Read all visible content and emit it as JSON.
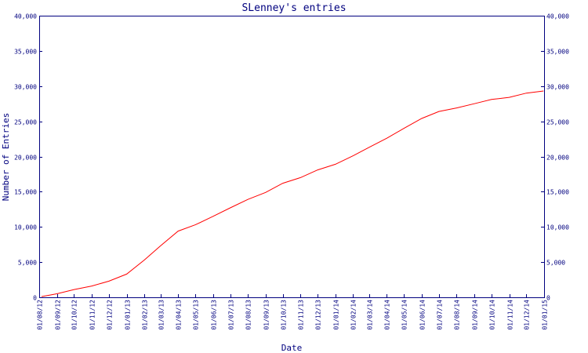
{
  "chart_data": {
    "type": "line",
    "title": "SLenney's entries",
    "xlabel": "Date",
    "ylabel": "Number of Entries",
    "ylim": [
      0,
      40000
    ],
    "yticks": [
      0,
      5000,
      10000,
      15000,
      20000,
      25000,
      30000,
      35000,
      40000
    ],
    "ytick_labels": [
      "0",
      "5,000",
      "10,000",
      "15,000",
      "20,000",
      "25,000",
      "30,000",
      "35,000",
      "40,000"
    ],
    "y_axis_right": true,
    "grid": false,
    "xlim": [
      "2012-08-01",
      "2015-01-01"
    ],
    "xticks": [
      "2012-08-01",
      "2012-09-01",
      "2012-10-01",
      "2012-11-01",
      "2012-12-01",
      "2013-01-01",
      "2013-02-01",
      "2013-03-01",
      "2013-04-01",
      "2013-05-01",
      "2013-06-01",
      "2013-07-01",
      "2013-08-01",
      "2013-09-01",
      "2013-10-01",
      "2013-11-01",
      "2013-12-01",
      "2014-01-01",
      "2014-02-01",
      "2014-03-01",
      "2014-04-01",
      "2014-05-01",
      "2014-06-01",
      "2014-07-01",
      "2014-08-01",
      "2014-09-01",
      "2014-10-01",
      "2014-11-01",
      "2014-12-01",
      "2015-01-01"
    ],
    "xtick_labels": [
      "01/08/12",
      "01/09/12",
      "01/10/12",
      "01/11/12",
      "01/12/12",
      "01/01/13",
      "01/02/13",
      "01/03/13",
      "01/04/13",
      "01/05/13",
      "01/06/13",
      "01/07/13",
      "01/08/13",
      "01/09/13",
      "01/10/13",
      "01/11/13",
      "01/12/13",
      "01/01/14",
      "01/02/14",
      "01/03/14",
      "01/04/14",
      "01/05/14",
      "01/06/14",
      "01/07/14",
      "01/08/14",
      "01/09/14",
      "01/10/14",
      "01/11/14",
      "01/12/14",
      "01/01/15"
    ],
    "series": [
      {
        "color": "#ff0000",
        "x": [
          "2012-08-05",
          "2012-09-01",
          "2012-10-01",
          "2012-11-01",
          "2012-12-01",
          "2013-01-01",
          "2013-02-01",
          "2013-03-01",
          "2013-04-01",
          "2013-05-01",
          "2013-06-01",
          "2013-07-01",
          "2013-08-01",
          "2013-09-01",
          "2013-10-01",
          "2013-11-01",
          "2013-12-01",
          "2014-01-01",
          "2014-02-01",
          "2014-03-01",
          "2014-04-01",
          "2014-05-01",
          "2014-06-01",
          "2014-07-01",
          "2014-08-01",
          "2014-09-01",
          "2014-10-01",
          "2014-11-01",
          "2014-12-01",
          "2014-12-31"
        ],
        "y": [
          100,
          500,
          1100,
          1600,
          2300,
          3300,
          5300,
          7300,
          9400,
          10300,
          11500,
          12700,
          13900,
          14900,
          16200,
          17000,
          18100,
          18900,
          20100,
          21300,
          22600,
          24000,
          25400,
          26400,
          26900,
          27500,
          28100,
          28400,
          29000,
          29300
        ]
      }
    ]
  }
}
